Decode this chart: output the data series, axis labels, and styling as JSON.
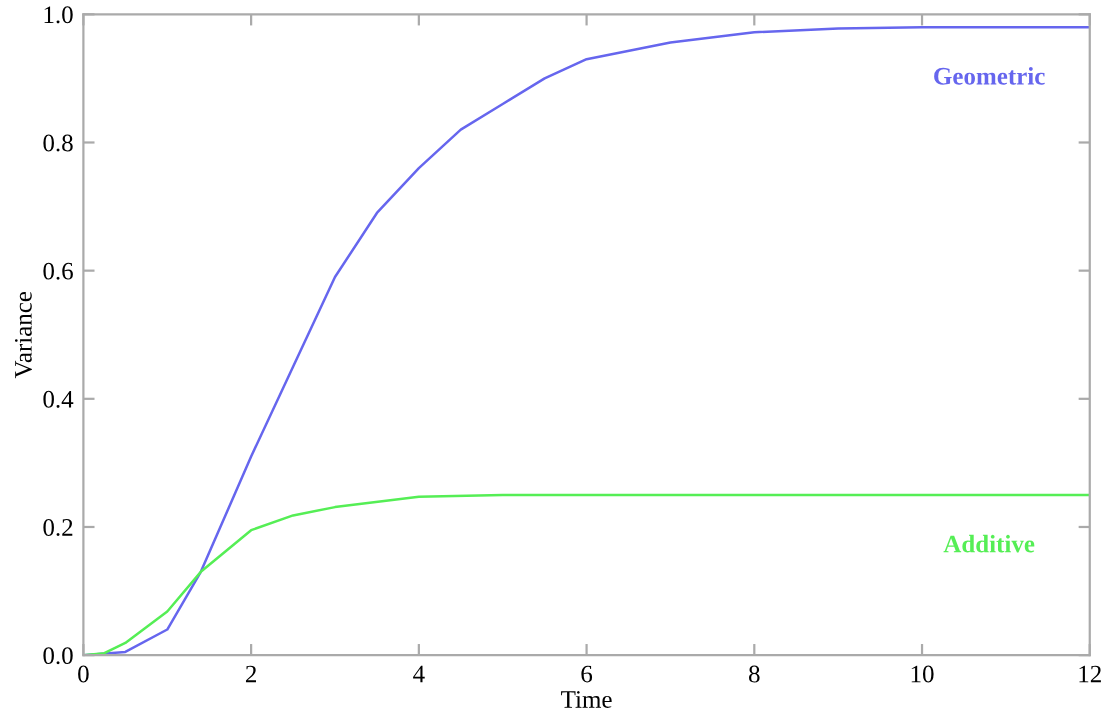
{
  "chart_data": {
    "type": "line",
    "xlabel": "Time",
    "ylabel": "Variance",
    "xlim": [
      0,
      12
    ],
    "ylim": [
      0,
      1
    ],
    "xticks": [
      0,
      2,
      4,
      6,
      8,
      10,
      12
    ],
    "yticks": [
      {
        "value": 0,
        "label": "0.0"
      },
      {
        "value": 0.2,
        "label": "0.2"
      },
      {
        "value": 0.4,
        "label": "0.4"
      },
      {
        "value": 0.6,
        "label": "0.6"
      },
      {
        "value": 0.8,
        "label": "0.8"
      },
      {
        "value": 1,
        "label": "1.0"
      }
    ],
    "grid": false,
    "line_style": "solid",
    "marker": "none",
    "series": [
      {
        "name": "Geometric",
        "color": "#6666ee",
        "x": [
          0,
          0.5,
          1,
          1.4,
          2,
          2.5,
          3,
          3.5,
          4,
          4.5,
          5,
          5.5,
          6,
          7,
          8,
          9,
          10,
          12
        ],
        "values": [
          0,
          0.005,
          0.04,
          0.13,
          0.31,
          0.45,
          0.59,
          0.69,
          0.76,
          0.82,
          0.86,
          0.9,
          0.93,
          0.956,
          0.972,
          0.978,
          0.98,
          0.98
        ]
      },
      {
        "name": "Additive",
        "color": "#55ee55",
        "x": [
          0,
          0.25,
          0.5,
          1,
          1.4,
          2,
          2.5,
          3,
          4,
          5,
          12
        ],
        "values": [
          0,
          0.003,
          0.019,
          0.068,
          0.13,
          0.195,
          0.218,
          0.231,
          0.247,
          0.25,
          0.25
        ]
      }
    ]
  }
}
